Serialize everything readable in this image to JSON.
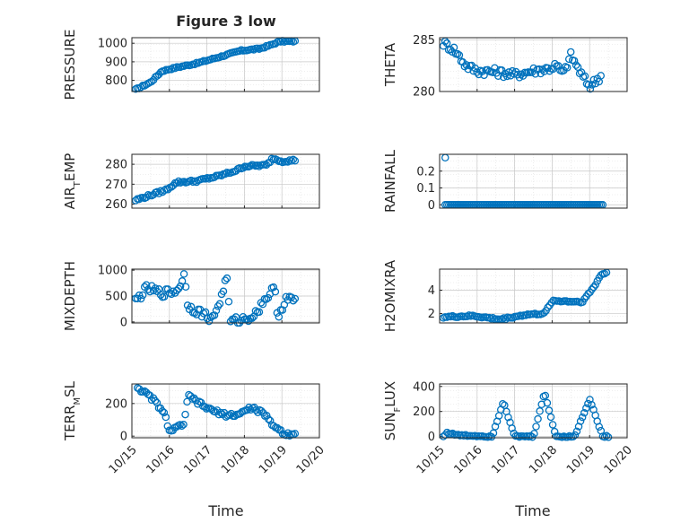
{
  "figure": {
    "title": "Figure 3 low",
    "xlabel": "Time",
    "marker_color": "#0072BD",
    "axis_color": "#262626",
    "grid_color": "#dfdfdf"
  },
  "chart_data": [
    {
      "type": "scatter",
      "ylabel": "PRESSURE",
      "ylim": [
        740,
        1030
      ],
      "yticks": [
        800,
        900,
        1000
      ],
      "xlim": [
        0,
        5
      ],
      "xticks": [
        "10/15",
        "10/16",
        "10/17",
        "10/18",
        "10/19",
        "10/20"
      ],
      "grid": true,
      "series": [
        {
          "keypoints": [
            [
              0.1,
              750
            ],
            [
              0.5,
              790
            ],
            [
              0.8,
              850
            ],
            [
              1.2,
              870
            ],
            [
              1.7,
              890
            ],
            [
              2.4,
              930
            ],
            [
              2.9,
              960
            ],
            [
              3.4,
              970
            ],
            [
              3.7,
              990
            ],
            [
              3.95,
              1010
            ],
            [
              4.35,
              1010
            ]
          ],
          "noise": 4
        }
      ]
    },
    {
      "type": "scatter",
      "ylabel": "THETA",
      "ylim": [
        280,
        285.2
      ],
      "yticks": [
        280,
        285
      ],
      "xlim": [
        0,
        5
      ],
      "xticks": [
        "10/15",
        "10/16",
        "10/17",
        "10/18",
        "10/19",
        "10/20"
      ],
      "grid": true,
      "series": [
        {
          "keypoints": [
            [
              0.1,
              284.7
            ],
            [
              0.4,
              284
            ],
            [
              0.7,
              282.5
            ],
            [
              1.0,
              282
            ],
            [
              1.5,
              281.9
            ],
            [
              2.0,
              281.6
            ],
            [
              2.5,
              282
            ],
            [
              2.9,
              282.2
            ],
            [
              3.1,
              282.5
            ],
            [
              3.3,
              281.7
            ],
            [
              3.5,
              283.5
            ],
            [
              3.8,
              281.5
            ],
            [
              4.0,
              280.5
            ],
            [
              4.3,
              281.5
            ]
          ],
          "noise": 0.4
        }
      ]
    },
    {
      "type": "scatter",
      "ylabel": "AIR_TEMP",
      "ylim": [
        258,
        285
      ],
      "yticks": [
        260,
        270,
        280
      ],
      "xlim": [
        0,
        5
      ],
      "xticks": [
        "10/15",
        "10/16",
        "10/17",
        "10/18",
        "10/19",
        "10/20"
      ],
      "grid": true,
      "series": [
        {
          "keypoints": [
            [
              0.1,
              262
            ],
            [
              0.9,
              267
            ],
            [
              1.2,
              271
            ],
            [
              1.7,
              271.5
            ],
            [
              2.3,
              274
            ],
            [
              2.8,
              277
            ],
            [
              3.0,
              279
            ],
            [
              3.6,
              279.5
            ],
            [
              3.75,
              283
            ],
            [
              4.0,
              281.5
            ],
            [
              4.35,
              282
            ]
          ],
          "noise": 0.6
        }
      ]
    },
    {
      "type": "scatter",
      "ylabel": "RAINFALL",
      "ylim": [
        -0.02,
        0.3
      ],
      "yticks": [
        0,
        0.1,
        0.2
      ],
      "xlim": [
        0,
        5
      ],
      "xticks": [
        "10/15",
        "10/16",
        "10/17",
        "10/18",
        "10/19",
        "10/20"
      ],
      "grid": true,
      "series": [
        {
          "keypoints": [
            [
              0.15,
              0
            ],
            [
              4.35,
              0
            ]
          ],
          "noise": 0,
          "extra": [
            [
              0.15,
              0.28
            ]
          ]
        }
      ]
    },
    {
      "type": "scatter",
      "ylabel": "MIXDEPTH",
      "ylim": [
        -20,
        1020
      ],
      "yticks": [
        0,
        500,
        1000
      ],
      "xlim": [
        0,
        5
      ],
      "xticks": [
        "10/15",
        "10/16",
        "10/17",
        "10/18",
        "10/19",
        "10/20"
      ],
      "grid": true,
      "series": [
        {
          "keypoints": [
            [
              0.1,
              400
            ],
            [
              0.4,
              650
            ],
            [
              0.8,
              550
            ],
            [
              1.2,
              600
            ],
            [
              1.4,
              900
            ],
            [
              1.5,
              300
            ],
            [
              1.9,
              150
            ],
            [
              2.15,
              50
            ],
            [
              2.4,
              500
            ],
            [
              2.55,
              950
            ],
            [
              2.6,
              0
            ],
            [
              3.0,
              50
            ],
            [
              3.3,
              150
            ],
            [
              3.5,
              400
            ],
            [
              3.8,
              650
            ],
            [
              3.9,
              100
            ],
            [
              4.1,
              450
            ],
            [
              4.35,
              400
            ]
          ],
          "noise": 80
        }
      ]
    },
    {
      "type": "scatter",
      "ylabel": "H2OMIXRA",
      "ylim": [
        1.2,
        5.8
      ],
      "yticks": [
        2,
        4
      ],
      "xlim": [
        0,
        5
      ],
      "xticks": [
        "10/15",
        "10/16",
        "10/17",
        "10/18",
        "10/19",
        "10/20"
      ],
      "grid": true,
      "series": [
        {
          "keypoints": [
            [
              0.1,
              1.7
            ],
            [
              0.9,
              1.8
            ],
            [
              1.6,
              1.5
            ],
            [
              2.3,
              1.9
            ],
            [
              2.8,
              2.0
            ],
            [
              3.0,
              3.1
            ],
            [
              3.8,
              3.0
            ],
            [
              4.1,
              4.2
            ],
            [
              4.3,
              5.3
            ],
            [
              4.45,
              5.5
            ]
          ],
          "noise": 0.08
        }
      ]
    },
    {
      "type": "scatter",
      "ylabel": "TERR_MSL",
      "ylim": [
        -10,
        320
      ],
      "yticks": [
        0,
        200
      ],
      "xlim": [
        0,
        5
      ],
      "xticks": [
        "10/15",
        "10/16",
        "10/17",
        "10/18",
        "10/19",
        "10/20"
      ],
      "grid": true,
      "series": [
        {
          "keypoints": [
            [
              0.15,
              300
            ],
            [
              0.6,
              220
            ],
            [
              0.9,
              120
            ],
            [
              1.0,
              30
            ],
            [
              1.2,
              50
            ],
            [
              1.4,
              80
            ],
            [
              1.5,
              250
            ],
            [
              1.8,
              200
            ],
            [
              2.1,
              160
            ],
            [
              2.5,
              130
            ],
            [
              2.8,
              130
            ],
            [
              3.2,
              175
            ],
            [
              3.5,
              140
            ],
            [
              3.8,
              60
            ],
            [
              4.1,
              10
            ],
            [
              4.35,
              20
            ]
          ],
          "noise": 12
        }
      ]
    },
    {
      "type": "scatter",
      "ylabel": "SUN_FLUX",
      "ylim": [
        -10,
        420
      ],
      "yticks": [
        0,
        200,
        400
      ],
      "xlim": [
        0,
        5
      ],
      "xticks": [
        "10/15",
        "10/16",
        "10/17",
        "10/18",
        "10/19",
        "10/20"
      ],
      "grid": true,
      "series": [
        {
          "keypoints": [
            [
              0.1,
              0
            ],
            [
              0.2,
              30
            ],
            [
              0.5,
              10
            ],
            [
              1.0,
              5
            ],
            [
              1.4,
              0
            ],
            [
              1.7,
              280
            ],
            [
              2.0,
              0
            ],
            [
              2.5,
              0
            ],
            [
              2.8,
              350
            ],
            [
              3.1,
              0
            ],
            [
              3.6,
              0
            ],
            [
              4.0,
              300
            ],
            [
              4.35,
              0
            ],
            [
              4.5,
              0
            ]
          ],
          "noise": 6
        }
      ]
    }
  ]
}
